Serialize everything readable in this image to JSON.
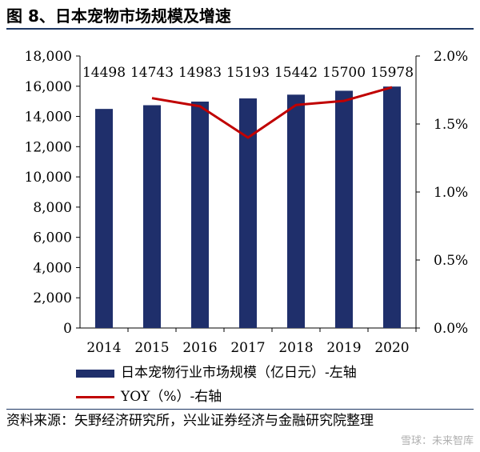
{
  "figure_title": "图 8、日本宠物市场规模及增速",
  "source_text": "资料来源：矢野经济研究所，兴业证券经济与金融研究院整理",
  "watermark": "雪球：未来智库",
  "colors": {
    "bar": "#1f2f6b",
    "line": "#c00000",
    "rule": "#1f3864"
  },
  "chart_data": {
    "type": "bar",
    "categories": [
      "2014",
      "2015",
      "2016",
      "2017",
      "2018",
      "2019",
      "2020"
    ],
    "series": [
      {
        "name": "日本宠物行业市场规模（亿日元）-左轴",
        "type": "bar",
        "axis": "left",
        "values": [
          14498,
          14743,
          14983,
          15193,
          15442,
          15700,
          15978
        ]
      },
      {
        "name": "YOY（%）-右轴",
        "type": "line",
        "axis": "right",
        "values": [
          null,
          1.69,
          1.63,
          1.4,
          1.64,
          1.67,
          1.77
        ]
      }
    ],
    "data_labels": [
      "14498",
      "14743",
      "14983",
      "15193",
      "15442",
      "15700",
      "15978"
    ],
    "y_left": {
      "min": 0,
      "max": 18000,
      "ticks": [
        "0",
        "2,000",
        "4,000",
        "6,000",
        "8,000",
        "10,000",
        "12,000",
        "14,000",
        "16,000",
        "18,000"
      ]
    },
    "y_right": {
      "min": 0,
      "max": 2.0,
      "ticks": [
        "0.0%",
        "0.5%",
        "1.0%",
        "1.5%",
        "2.0%"
      ]
    },
    "grid": false,
    "legend_position": "bottom"
  }
}
